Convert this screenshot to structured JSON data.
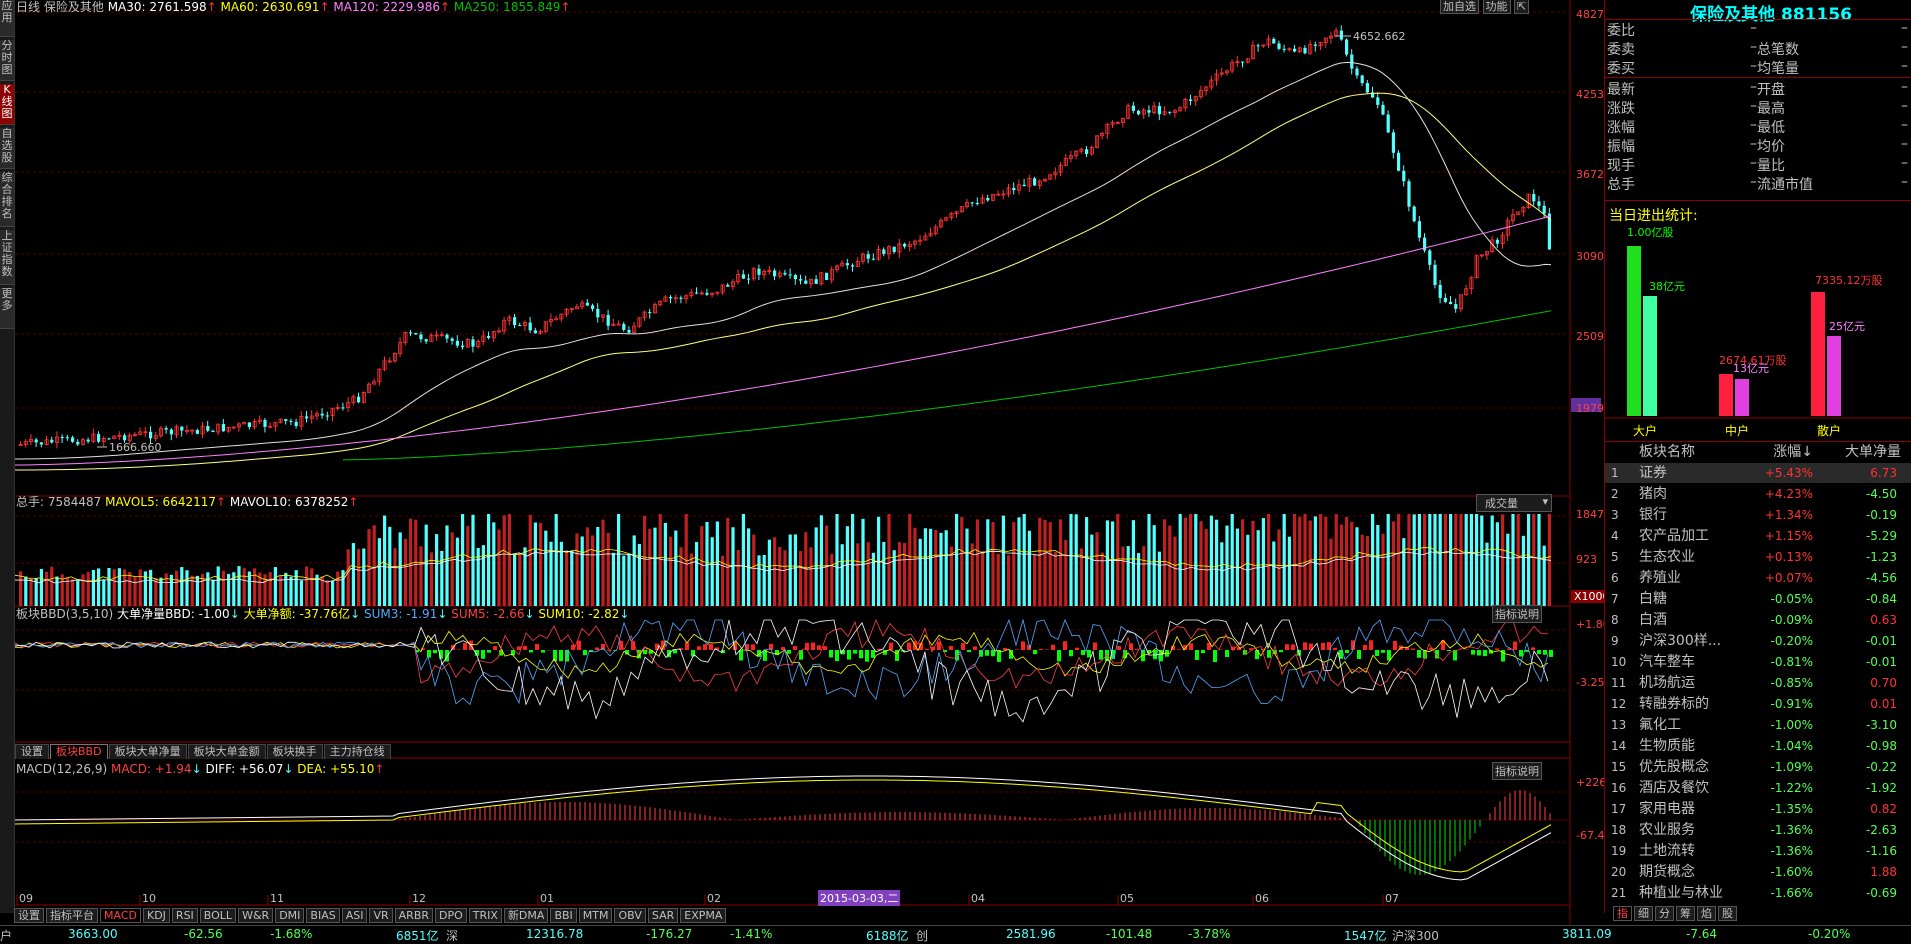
{
  "left_tabs": [
    "应用",
    "分时图",
    "K线图",
    "自选股",
    "综合排名",
    "上证指数",
    "更多"
  ],
  "main_header": {
    "period": "日线",
    "name": "保险及其他",
    "ma30": "MA30: 2761.598",
    "ma60": "MA60: 2630.691",
    "ma120": "MA120: 2229.986",
    "ma250": "MA250: 1855.849",
    "btn_add": "加自选",
    "btn_fn": "功能"
  },
  "price_axis": [
    "4827",
    "4253",
    "3672",
    "3090",
    "2509",
    "1979"
  ],
  "annotations": {
    "high": "4652.662",
    "low": "1666.660"
  },
  "volume_header": {
    "total": "总手: 7584487",
    "mavol5": "MAVOL5: 6642117",
    "mavol10": "MAVOL10: 6378252",
    "dropdown": "成交量"
  },
  "volume_axis": [
    "1847",
    "923",
    "X10000"
  ],
  "bbd_header": {
    "title": "板块BBD(3,5,10)",
    "net": "大单净量BBD: -1.00",
    "amount": "大单净额: -37.76亿",
    "sum3": "SUM3: -1.91",
    "sum5": "SUM5: -2.66",
    "sum10": "SUM10: -2.82",
    "help": "指标说明"
  },
  "bbd_axis": [
    "+1.80",
    "-3.25"
  ],
  "bbd_tabs": [
    "设置",
    "板块BBD",
    "板块大单净量",
    "板块大单金额",
    "板块换手",
    "主力持仓线"
  ],
  "macd_header": {
    "title": "MACD(12,26,9)",
    "macd": "MACD: +1.94",
    "diff": "DIFF: +56.07",
    "dea": "DEA: +55.10",
    "help": "指标说明"
  },
  "macd_axis": [
    "+226.5",
    "-67.47"
  ],
  "x_axis": [
    "09",
    "10",
    "11",
    "12",
    "01",
    "02",
    "03",
    "04",
    "05",
    "06",
    "07"
  ],
  "cursor_date": "2015-03-03,二",
  "bottom_tabs": [
    "设置",
    "指标平台",
    "MACD",
    "KDJ",
    "RSI",
    "BOLL",
    "W&R",
    "DMI",
    "BIAS",
    "ASI",
    "VR",
    "ARBR",
    "DPO",
    "TRIX",
    "新DMA",
    "BBI",
    "MTM",
    "OBV",
    "SAR",
    "EXPMA"
  ],
  "quote": {
    "title": "保险及其他 881156",
    "rows": [
      {
        "l": "委比",
        "v": "–",
        "l2": "",
        "v2": ""
      },
      {
        "l": "委卖",
        "v": "–",
        "l2": "总笔数",
        "v2": ""
      },
      {
        "l": "委买",
        "v": "–",
        "l2": "均笔量",
        "v2": ""
      },
      {
        "l": "最新",
        "v": "–",
        "l2": "开盘",
        "v2": ""
      },
      {
        "l": "涨跌",
        "v": "–",
        "l2": "最高",
        "v2": ""
      },
      {
        "l": "涨幅",
        "v": "–",
        "l2": "最低",
        "v2": ""
      },
      {
        "l": "振幅",
        "v": "–",
        "l2": "均价",
        "v2": ""
      },
      {
        "l": "现手",
        "v": "–",
        "l2": "量比",
        "v2": ""
      },
      {
        "l": "总手",
        "v": "–",
        "l2": "流通市值",
        "v2": ""
      }
    ]
  },
  "flow": {
    "title": "当日进出统计:",
    "big_label": "大户",
    "mid_label": "中户",
    "small_label": "散户",
    "big_in": "1.00亿股",
    "big_out": "38亿元",
    "mid_in": "2674.61万股",
    "mid_out": "13亿元",
    "small_in": "7335.12万股",
    "small_out": "25亿元"
  },
  "sector_list": {
    "headers": [
      "板块名称",
      "涨幅↓",
      "大单净量"
    ],
    "rows": [
      [
        "1",
        "证券",
        "+5.43%",
        "6.73"
      ],
      [
        "2",
        "猪肉",
        "+4.23%",
        "-4.50"
      ],
      [
        "3",
        "银行",
        "+1.34%",
        "-0.19"
      ],
      [
        "4",
        "农产品加工",
        "+1.15%",
        "-5.29"
      ],
      [
        "5",
        "生态农业",
        "+0.13%",
        "-1.23"
      ],
      [
        "6",
        "养殖业",
        "+0.07%",
        "-4.56"
      ],
      [
        "7",
        "白糖",
        "-0.05%",
        "-0.84"
      ],
      [
        "8",
        "白酒",
        "-0.09%",
        "0.63"
      ],
      [
        "9",
        "沪深300样...",
        "-0.20%",
        "-0.01"
      ],
      [
        "10",
        "汽车整车",
        "-0.81%",
        "-0.01"
      ],
      [
        "11",
        "机场航运",
        "-0.85%",
        "0.70"
      ],
      [
        "12",
        "转融券标的",
        "-0.91%",
        "0.01"
      ],
      [
        "13",
        "氟化工",
        "-1.00%",
        "-3.10"
      ],
      [
        "14",
        "生物质能",
        "-1.04%",
        "-0.98"
      ],
      [
        "15",
        "优先股概念",
        "-1.09%",
        "-0.22"
      ],
      [
        "16",
        "酒店及餐饮",
        "-1.22%",
        "-1.92"
      ],
      [
        "17",
        "家用电器",
        "-1.35%",
        "0.82"
      ],
      [
        "18",
        "农业服务",
        "-1.36%",
        "-2.63"
      ],
      [
        "19",
        "土地流转",
        "-1.36%",
        "-1.16"
      ],
      [
        "20",
        "期货概念",
        "-1.60%",
        "1.88"
      ],
      [
        "21",
        "种植业与林业",
        "-1.66%",
        "-0.69"
      ]
    ]
  },
  "right_tabs": [
    "指",
    "细",
    "分",
    "筹",
    "焰",
    "股"
  ],
  "bottom_bar": {
    "sh_val": "3663.00",
    "sh_chg": "-62.56",
    "sh_pct": "-1.68%",
    "sh_amt": "6851亿",
    "sz_label": "深",
    "sz_val": "12316.78",
    "sz_chg": "-176.27",
    "sz_pct": "-1.41%",
    "sz_amt": "6188亿",
    "cy_label": "创",
    "cy_val": "2581.96",
    "cy_chg": "-101.48",
    "cy_pct": "-3.78%",
    "cy_amt": "1547亿",
    "hs_label": "沪深300",
    "hs_val": "3811.09",
    "hs_chg": "-7.64",
    "hs_pct": "-0.20%",
    "left_label": "户"
  },
  "colors": {
    "up": "#ff3232",
    "down": "#54ffff",
    "ma30": "#ffffff",
    "ma60": "#ffff00",
    "ma120": "#ff80ff",
    "ma250": "#00c000"
  }
}
